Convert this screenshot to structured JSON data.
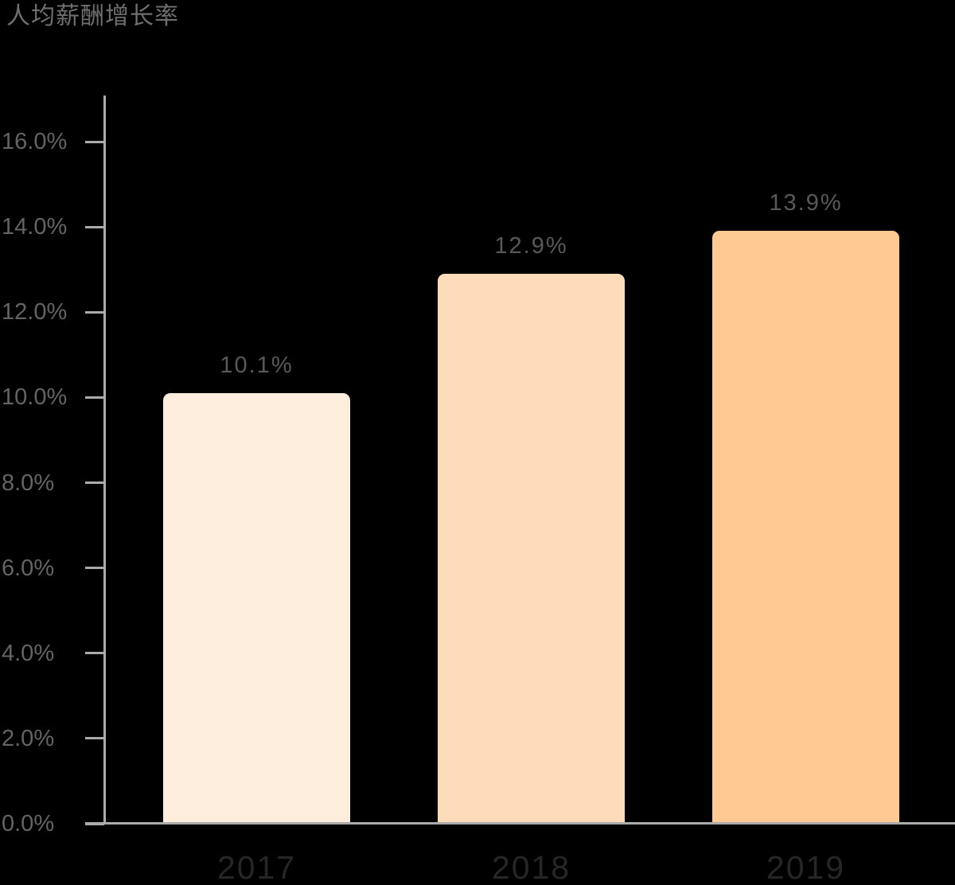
{
  "title": "人均薪酬增长率",
  "colors": {
    "background": "#000000",
    "axis": "#ababab",
    "title_text": "#6f6f6f",
    "ytick_text": "#646464",
    "value_label_text": "#595959",
    "category_text": "#262626"
  },
  "chart_data": {
    "type": "bar",
    "title": "人均薪酬增长率",
    "categories": [
      "2017",
      "2018",
      "2019"
    ],
    "values": [
      10.1,
      12.9,
      13.9
    ],
    "value_labels": [
      "10.1%",
      "12.9%",
      "13.9%"
    ],
    "bar_colors": [
      "#FDEDDC",
      "#FEDCB9",
      "#FEC992"
    ],
    "xlabel": "",
    "ylabel": "",
    "ylim": [
      0,
      16
    ],
    "ytick_step": 2,
    "ytick_labels": [
      "0.0%",
      "2.0%",
      "4.0%",
      "6.0%",
      "8.0%",
      "10.0%",
      "12.0%",
      "14.0%",
      "16.0%"
    ],
    "grid": false,
    "legend": "none"
  }
}
